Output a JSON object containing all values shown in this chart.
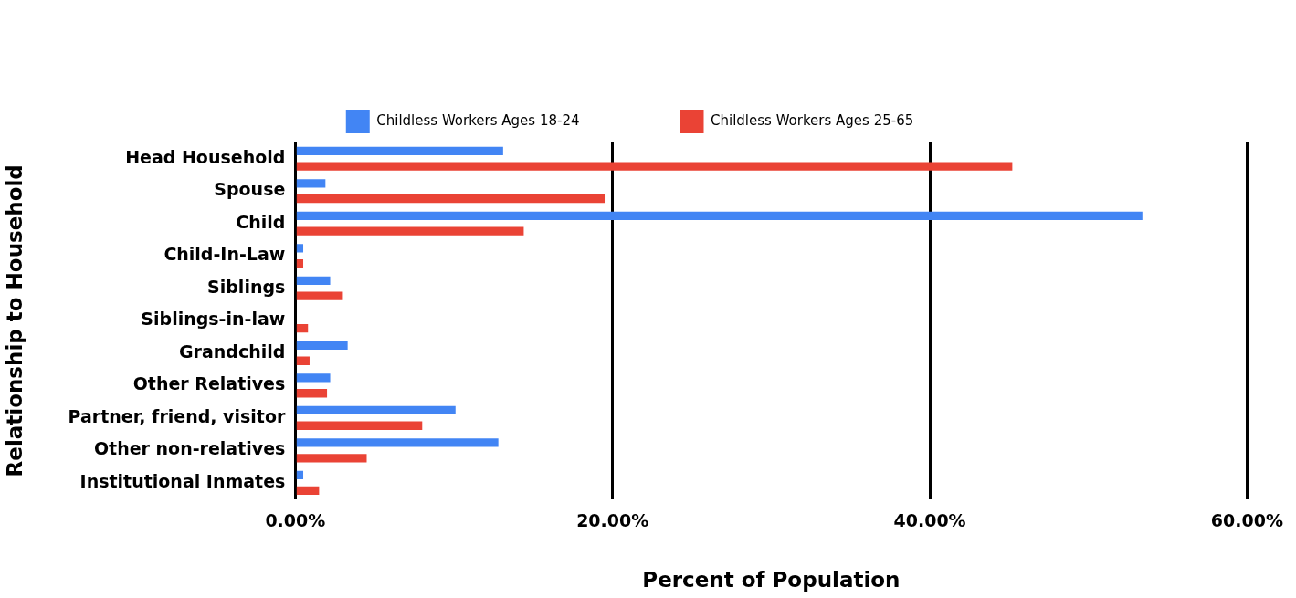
{
  "chart_data": {
    "type": "bar",
    "orientation": "horizontal",
    "xlabel": "Percent of Population",
    "ylabel": "Relationship to Household",
    "categories": [
      "Head Household",
      "Spouse",
      "Child",
      "Child-In-Law",
      "Siblings",
      "Siblings-in-law",
      "Grandchild",
      "Other Relatives",
      "Partner, friend, visitor",
      "Other non-relatives",
      "Institutional Inmates"
    ],
    "series": [
      {
        "name": "Childless Workers Ages 18-24",
        "color": "#4285f4",
        "values": [
          13.1,
          1.9,
          53.4,
          0.5,
          2.2,
          0,
          3.3,
          2.2,
          10.1,
          12.8,
          0.5
        ]
      },
      {
        "name": "Childless Workers Ages 25-65",
        "color": "#ea4335",
        "values": [
          45.2,
          19.5,
          14.4,
          0.5,
          3.0,
          0.8,
          0.9,
          2.0,
          8.0,
          4.5,
          1.5
        ]
      }
    ],
    "xlim": [
      0,
      60
    ],
    "xticks": [
      {
        "value": 0,
        "label": "0.00%"
      },
      {
        "value": 20,
        "label": "20.00%"
      },
      {
        "value": 40,
        "label": "40.00%"
      },
      {
        "value": 60,
        "label": "60.00%"
      }
    ],
    "grid": "x",
    "legend": "top"
  }
}
